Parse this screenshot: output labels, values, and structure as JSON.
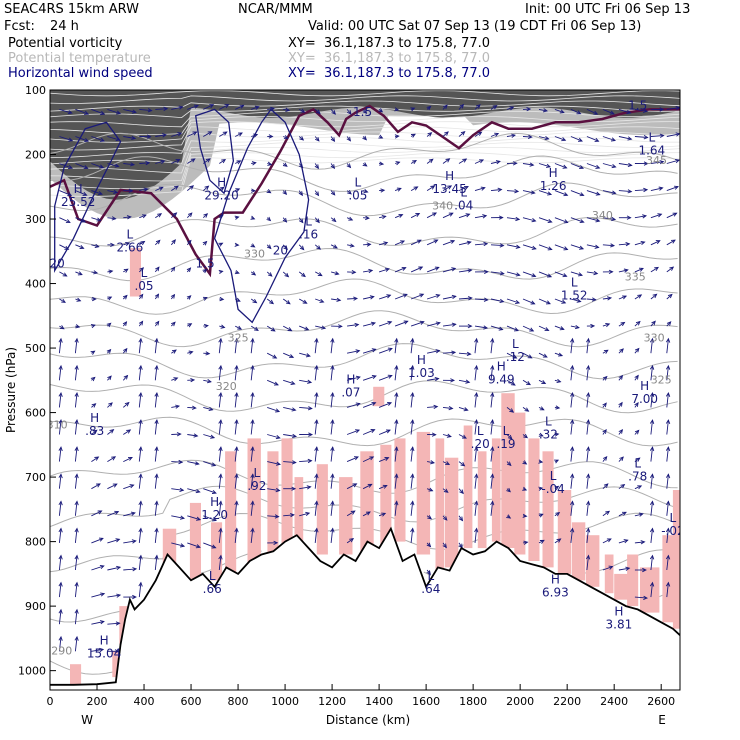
{
  "header": {
    "model": "SEAC4RS 15km ARW",
    "org": "NCAR/MMM",
    "init": "Init: 00 UTC Fri 06 Sep 13",
    "fcst_label": "Fcst:",
    "fcst_value": "24 h",
    "valid": "Valid: 00 UTC Sat 07 Sep 13 (19 CDT Fri 06 Sep 13)",
    "fields": [
      {
        "name": "Potential vorticity",
        "xy": "XY=  36.1,187.3 to 175.8, 77.0",
        "color": "#000000"
      },
      {
        "name": "Potential temperature",
        "xy": "XY=  36.1,187.3 to 175.8, 77.0",
        "color": "#b8b8b8"
      },
      {
        "name": "Horizontal wind speed",
        "xy": "XY=  36.1,187.3 to 175.8, 77.0",
        "color": "#00007f"
      }
    ]
  },
  "chart_data": {
    "type": "cross-section",
    "xlabel": "Distance (km)",
    "ylabel": "Pressure (hPa)",
    "xlim": [
      0,
      2680
    ],
    "ylim": [
      1030,
      100
    ],
    "x_ticks": [
      0,
      200,
      400,
      600,
      800,
      1000,
      1200,
      1400,
      1600,
      1800,
      2000,
      2200,
      2400,
      2600
    ],
    "y_ticks": [
      100,
      200,
      300,
      400,
      500,
      600,
      700,
      800,
      900,
      1000
    ],
    "x_end_labels": {
      "left": "W",
      "right": "E"
    },
    "colors": {
      "pv_shade": "#f4b6b6",
      "stratosphere": "#333333",
      "wind": "#1a1a7a",
      "theta": "#b0b0b0",
      "pv_contour": "#5a1040"
    },
    "terrain": {
      "distance_km": [
        0,
        100,
        200,
        280,
        300,
        320,
        340,
        360,
        400,
        450,
        500,
        550,
        600,
        650,
        700,
        750,
        800,
        850,
        900,
        950,
        1000,
        1050,
        1100,
        1150,
        1200,
        1250,
        1300,
        1350,
        1400,
        1450,
        1500,
        1550,
        1600,
        1650,
        1700,
        1750,
        1800,
        1850,
        1900,
        1950,
        2000,
        2050,
        2100,
        2150,
        2200,
        2250,
        2300,
        2350,
        2400,
        2450,
        2500,
        2550,
        2600,
        2650,
        2680
      ],
      "pressure_hpa": [
        1022,
        1022,
        1021,
        1018,
        960,
        920,
        890,
        905,
        890,
        860,
        820,
        840,
        860,
        850,
        870,
        840,
        850,
        830,
        820,
        815,
        800,
        790,
        810,
        830,
        840,
        820,
        830,
        800,
        810,
        780,
        830,
        820,
        870,
        840,
        845,
        810,
        820,
        815,
        800,
        810,
        830,
        835,
        840,
        850,
        850,
        860,
        870,
        880,
        890,
        900,
        905,
        915,
        925,
        935,
        945
      ]
    },
    "extrema_labels": [
      {
        "kind": "H",
        "value": "25.52",
        "x": 120,
        "p": 280
      },
      {
        "kind": "H",
        "value": "15.04",
        "x": 230,
        "p": 980
      },
      {
        "kind": "L",
        "value": "2.66",
        "x": 340,
        "p": 350
      },
      {
        "kind": "L",
        "value": ".05",
        "x": 400,
        "p": 410
      },
      {
        "kind": "H",
        "value": ".83",
        "x": 190,
        "p": 635
      },
      {
        "kind": "H",
        "value": "1.20",
        "x": 700,
        "p": 765
      },
      {
        "kind": "L",
        "value": ".92",
        "x": 880,
        "p": 720
      },
      {
        "kind": "H",
        "value": "29.20",
        "x": 730,
        "p": 270
      },
      {
        "kind": "L",
        "value": ".16",
        "x": 1100,
        "p": 330
      },
      {
        "kind": "L",
        "value": ".05",
        "x": 1310,
        "p": 270
      },
      {
        "kind": "H",
        "value": "13.45",
        "x": 1700,
        "p": 260
      },
      {
        "kind": "L",
        "value": ".04",
        "x": 1760,
        "p": 285
      },
      {
        "kind": "H",
        "value": "1.26",
        "x": 2140,
        "p": 255
      },
      {
        "kind": "L",
        "value": "1.64",
        "x": 2560,
        "p": 200
      },
      {
        "kind": "L",
        "value": "1.52",
        "x": 2230,
        "p": 425
      },
      {
        "kind": "H",
        "value": "1.03",
        "x": 1580,
        "p": 545
      },
      {
        "kind": "H",
        "value": ".07",
        "x": 1280,
        "p": 575
      },
      {
        "kind": "H",
        "value": "9.49",
        "x": 1920,
        "p": 555
      },
      {
        "kind": "L",
        "value": ".12",
        "x": 1980,
        "p": 520
      },
      {
        "kind": "H",
        "value": "7.00",
        "x": 2530,
        "p": 585
      },
      {
        "kind": "L",
        "value": ".20",
        "x": 1830,
        "p": 655
      },
      {
        "kind": "L",
        "value": ".19",
        "x": 1940,
        "p": 655
      },
      {
        "kind": "L",
        "value": ".32",
        "x": 2120,
        "p": 640
      },
      {
        "kind": "L",
        "value": "-.04",
        "x": 2140,
        "p": 725
      },
      {
        "kind": "L",
        "value": ".78",
        "x": 2500,
        "p": 705
      },
      {
        "kind": "L",
        "value": "-.02",
        "x": 2650,
        "p": 790
      },
      {
        "kind": "L",
        "value": ".66",
        "x": 690,
        "p": 880
      },
      {
        "kind": "L",
        "value": ".64",
        "x": 1620,
        "p": 880
      },
      {
        "kind": "H",
        "value": "6.93",
        "x": 2150,
        "p": 885
      },
      {
        "kind": "H",
        "value": "3.81",
        "x": 2420,
        "p": 935
      }
    ],
    "theta_labels": [
      {
        "value": "290",
        "x": 50,
        "p": 975
      },
      {
        "value": "310",
        "x": 30,
        "p": 625
      },
      {
        "value": "320",
        "x": 750,
        "p": 565
      },
      {
        "value": "325",
        "x": 800,
        "p": 490
      },
      {
        "value": "330",
        "x": 870,
        "p": 360
      },
      {
        "value": "335",
        "x": 2490,
        "p": 395
      },
      {
        "value": "330",
        "x": 2570,
        "p": 490
      },
      {
        "value": "325",
        "x": 2600,
        "p": 555
      },
      {
        "value": "340",
        "x": 2350,
        "p": 300
      },
      {
        "value": "345",
        "x": 2580,
        "p": 215
      },
      {
        "value": "340",
        "x": 1670,
        "p": 285
      }
    ],
    "pv_labels": [
      {
        "value": "1.5",
        "x": 660,
        "p": 375
      },
      {
        "value": "1.5",
        "x": 1330,
        "p": 140
      },
      {
        "value": "1.5",
        "x": 2500,
        "p": 130
      }
    ],
    "wind_labels": [
      {
        "value": "20",
        "x": 30,
        "p": 375
      },
      {
        "value": "20",
        "x": 980,
        "p": 355
      }
    ]
  }
}
